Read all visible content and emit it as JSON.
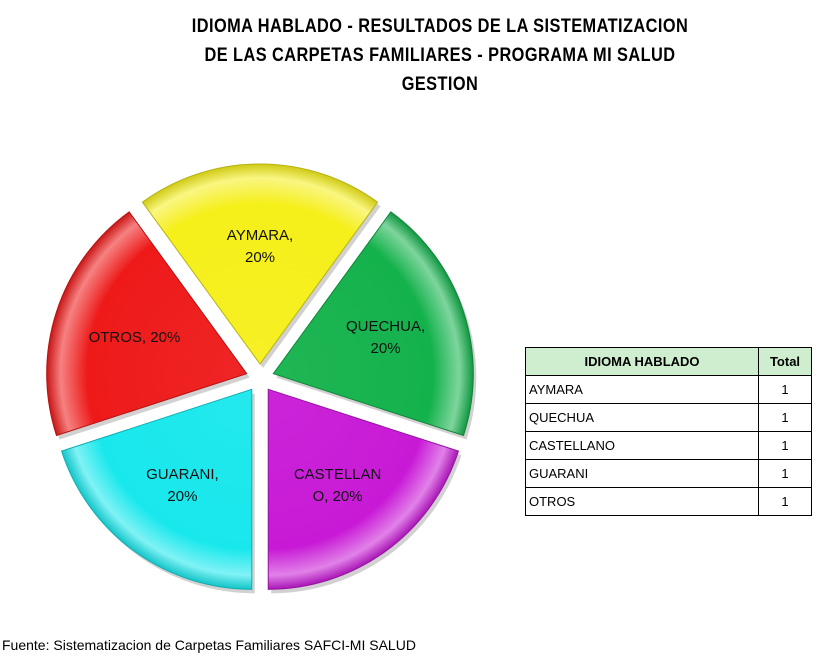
{
  "chart_data": {
    "type": "pie",
    "title_lines": [
      "IDIOMA HABLADO - RESULTADOS DE LA SISTEMATIZACION",
      "DE LAS CARPETAS FAMILIARES - PROGRAMA MI SALUD",
      "GESTION"
    ],
    "slices": [
      {
        "name": "AYMARA",
        "value": 1,
        "percent": 20,
        "label_lines": [
          "AYMARA,",
          "20%"
        ],
        "color": "#f5ef1a"
      },
      {
        "name": "QUECHUA",
        "value": 1,
        "percent": 20,
        "label_lines": [
          "QUECHUA,",
          "20%"
        ],
        "color": "#14b24c"
      },
      {
        "name": "CASTELLANO",
        "value": 1,
        "percent": 20,
        "label_lines": [
          "CASTELLAN",
          "O, 20%"
        ],
        "color": "#c81ad6"
      },
      {
        "name": "GUARANI",
        "value": 1,
        "percent": 20,
        "label_lines": [
          "GUARANI,",
          "20%"
        ],
        "color": "#18e8ec"
      },
      {
        "name": "OTROS",
        "value": 1,
        "percent": 20,
        "label_lines": [
          "OTROS, 20%"
        ],
        "color": "#ee1a1a"
      }
    ],
    "exploded": true,
    "legend": "none"
  },
  "table": {
    "header_col1": "IDIOMA HABLADO",
    "header_col2": "Total",
    "header_color": "#cfeecf",
    "rows": [
      {
        "label": "AYMARA",
        "total": "1"
      },
      {
        "label": "QUECHUA",
        "total": "1"
      },
      {
        "label": "CASTELLANO",
        "total": "1"
      },
      {
        "label": "GUARANI",
        "total": "1"
      },
      {
        "label": "OTROS",
        "total": "1"
      }
    ]
  },
  "footer": {
    "source": "Fuente: Sistematizacion de Carpetas Familiares SAFCI-MI SALUD"
  }
}
